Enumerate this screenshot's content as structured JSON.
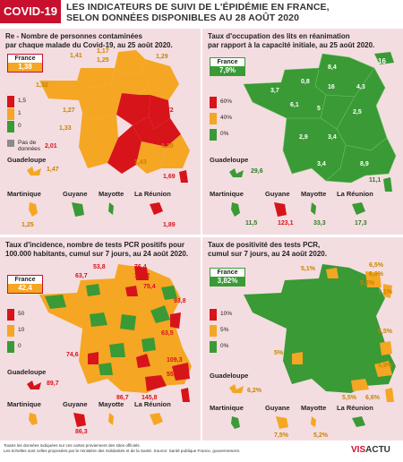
{
  "header": {
    "tag": "COVID-19",
    "title_line1": "LES INDICATEURS DE SUIVI DE L'ÉPIDÉMIE EN FRANCE,",
    "title_line2": "SELON DONNÉES DISPONIBLES AU 28 AOÛT 2020"
  },
  "colors": {
    "red": "#d7141a",
    "orange": "#f5a623",
    "green": "#3a9a35",
    "gray": "#8c8c8c",
    "pink_bg": "#f4dde1",
    "brand": "#c8102e"
  },
  "panels": [
    {
      "id": "re",
      "title_line1": "Re - Nombre de personnes contaminées",
      "title_line2": "par chaque malade du Covid-19, au 25 août 2020.",
      "france_label": "France",
      "france_value": "1,38",
      "france_color": "orange",
      "legend": [
        {
          "label": "1,5",
          "color": "red"
        },
        {
          "label": "1",
          "color": "orange"
        },
        {
          "label": "0",
          "color": "green"
        },
        {
          "label": "Pas de données",
          "color": "gray"
        }
      ],
      "labels": [
        "1,41",
        "1,17",
        "1,25",
        "1,29",
        "1,32",
        "1,27",
        "1,33",
        "2,01",
        "1,72",
        "1,63",
        "1,38",
        "1,43",
        "1,69",
        "1,47",
        "1,25",
        "1,89"
      ],
      "dom_names": [
        "Guadeloupe",
        "Martinique",
        "Guyane",
        "Mayotte",
        "La Réunion"
      ]
    },
    {
      "id": "rea",
      "title_line1": "Taux d'occupation des lits en réanimation",
      "title_line2": "par rapport à la capacité initiale, au 25 août 2020.",
      "france_label": "France",
      "france_value": "7,9%",
      "france_color": "green",
      "legend": [
        {
          "label": "60%",
          "color": "red"
        },
        {
          "label": "40%",
          "color": "orange"
        },
        {
          "label": "0%",
          "color": "green"
        }
      ],
      "labels": [
        "16",
        "8,4",
        "0,8",
        "3,7",
        "16",
        "4,3",
        "6,1",
        "5",
        "2,5",
        "2,9",
        "3,4",
        "8,9",
        "3,4",
        "29,6",
        "11,1",
        "11,5",
        "123,1",
        "33,3",
        "17,3"
      ],
      "dom_names": [
        "Guadeloupe",
        "Martinique",
        "Guyane",
        "Mayotte",
        "La Réunion"
      ]
    },
    {
      "id": "inc",
      "title_line1": "Taux d'incidence, nombre de tests PCR positifs pour",
      "title_line2": "100.000 habitants, cumul sur 7 jours, au 24 août 2020.",
      "france_label": "France",
      "france_value": "42,4",
      "france_color": "orange",
      "legend": [
        {
          "label": "50",
          "color": "red"
        },
        {
          "label": "10",
          "color": "orange"
        },
        {
          "label": "0",
          "color": "green"
        }
      ],
      "labels": [
        "53,8",
        "76,4",
        "114,2",
        "63,7",
        "75,4",
        "93,8",
        "63,5",
        "74,6",
        "109,3",
        "55,2",
        "86,7",
        "145,8",
        "89,7",
        "86,3"
      ],
      "dom_names": [
        "Guadeloupe",
        "Martinique",
        "Guyane",
        "Mayotte",
        "La Réunion"
      ]
    },
    {
      "id": "pos",
      "title_line1": "Taux de positivité des tests PCR,",
      "title_line2": "cumul sur 7 jours, au 24 août 2020.",
      "france_label": "France",
      "france_value": "3,82%",
      "france_color": "green",
      "legend": [
        {
          "label": "10%",
          "color": "red"
        },
        {
          "label": "5%",
          "color": "orange"
        },
        {
          "label": "0%",
          "color": "green"
        }
      ],
      "labels": [
        "5,1%",
        "6,5%",
        "6,9%",
        "5,2%",
        "7,1%",
        "5,5%",
        "5%",
        "5,9%",
        "5,5%",
        "6,6%",
        "6,2%",
        "7,5%",
        "5,2%"
      ],
      "dom_names": [
        "Guadeloupe",
        "Martinique",
        "Guyane",
        "Mayotte",
        "La Réunion"
      ]
    }
  ],
  "footer": {
    "note1": "Toutes les données indiquées sur ces cartes proviennent des sites officiels.",
    "note2": "Les échelles sont celles proposées par le ministère des Solidarités et de la Santé.",
    "source": "Source: Santé publique France, gouvernement.",
    "brand_a": "VIS",
    "brand_b": "ACTU"
  }
}
